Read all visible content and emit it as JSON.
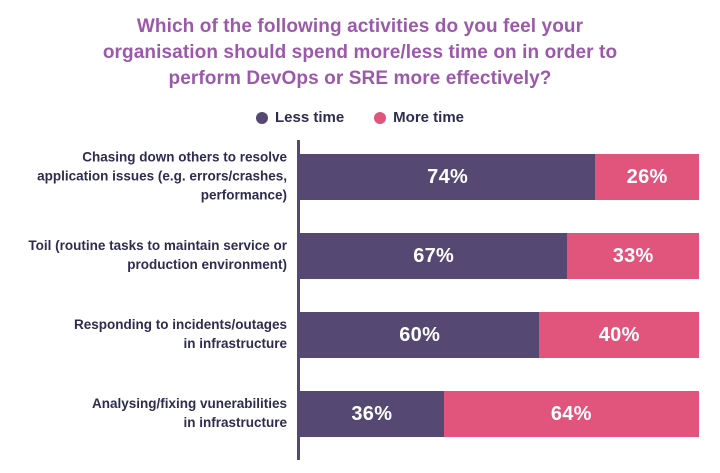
{
  "title": "Which of the following activities do you feel your\norganisation should spend more/less time on in order to\nperform DevOps or SRE more effectively?",
  "colors": {
    "title_text": "#9c59ab",
    "label_text": "#2e2c50",
    "axis_line": "#554872",
    "less_time": "#554872",
    "more_time": "#e1547c"
  },
  "legend": {
    "items": [
      {
        "label": "Less time",
        "color": "#554872"
      },
      {
        "label": "More time",
        "color": "#e1547c"
      }
    ]
  },
  "chart_data": {
    "type": "bar",
    "orientation": "horizontal",
    "stacked": true,
    "title": "Which of the following activities do you feel your organisation should spend more/less time on in order to perform DevOps or SRE more effectively?",
    "categories": [
      "Chasing down others to resolve\napplication issues (e.g. errors/crashes,\nperformance)",
      "Toil (routine tasks to maintain service or\nproduction environment)",
      "Responding to incidents/outages\nin infrastructure",
      "Analysing/fixing vunerabilities\nin infrastructure"
    ],
    "series": [
      {
        "name": "Less time",
        "color": "#554872",
        "values": [
          74,
          67,
          60,
          36
        ]
      },
      {
        "name": "More time",
        "color": "#e1547c",
        "values": [
          26,
          33,
          40,
          64
        ]
      }
    ],
    "value_format": "percent",
    "xlim": [
      0,
      100
    ],
    "grid": false,
    "legend_position": "top"
  }
}
